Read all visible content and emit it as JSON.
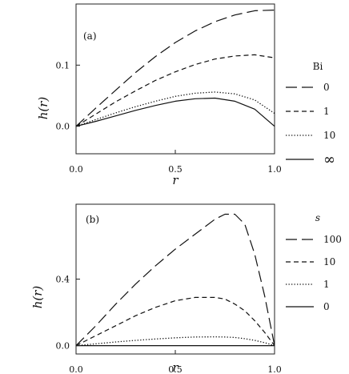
{
  "chart_data": [
    {
      "type": "line",
      "panel_label": "(a)",
      "xlabel": "r",
      "ylabel": "h(r)",
      "xlim": [
        0.0,
        1.0
      ],
      "ylim": [
        -0.045,
        0.2
      ],
      "x_ticks": [
        0.0,
        0.5,
        1.0
      ],
      "x_tick_labels": [
        "0.0",
        "0.5",
        "1.0"
      ],
      "y_ticks": [
        0.0,
        0.1
      ],
      "y_tick_labels": [
        "0.0",
        "0.1"
      ],
      "grid": false,
      "legend_placement": "right",
      "legend_title": "Bi",
      "x": [
        0.0,
        0.1,
        0.2,
        0.3,
        0.4,
        0.5,
        0.6,
        0.7,
        0.8,
        0.9,
        1.0
      ],
      "series": [
        {
          "name": "0",
          "dash": "long-dash",
          "values": [
            0.0,
            0.03,
            0.059,
            0.088,
            0.114,
            0.137,
            0.156,
            0.171,
            0.182,
            0.189,
            0.19
          ]
        },
        {
          "name": "1",
          "dash": "short-dash",
          "values": [
            0.0,
            0.02,
            0.04,
            0.058,
            0.075,
            0.089,
            0.101,
            0.11,
            0.115,
            0.117,
            0.112
          ]
        },
        {
          "name": "10",
          "dash": "dotted",
          "values": [
            0.0,
            0.011,
            0.022,
            0.032,
            0.041,
            0.049,
            0.054,
            0.056,
            0.053,
            0.043,
            0.021
          ]
        },
        {
          "name": "∞",
          "dash": "solid",
          "values": [
            0.0,
            0.008,
            0.017,
            0.026,
            0.034,
            0.041,
            0.045,
            0.046,
            0.041,
            0.028,
            0.0
          ]
        }
      ]
    },
    {
      "type": "line",
      "panel_label": "(b)",
      "xlabel": "r",
      "ylabel": "h(r)",
      "xlim": [
        0.0,
        1.0
      ],
      "ylim": [
        -0.05,
        0.85
      ],
      "x_ticks": [
        0.0,
        0.5,
        1.0
      ],
      "x_tick_labels": [
        "0.0",
        "0.5",
        "1.0"
      ],
      "y_ticks": [
        0.0,
        0.4
      ],
      "y_tick_labels": [
        "0.0",
        "0.4"
      ],
      "grid": false,
      "legend_placement": "right",
      "legend_title": "s",
      "x": [
        0.0,
        0.1,
        0.2,
        0.3,
        0.4,
        0.5,
        0.6,
        0.7,
        0.75,
        0.8,
        0.85,
        0.9,
        0.95,
        1.0
      ],
      "series": [
        {
          "name": "100",
          "dash": "long-dash",
          "values": [
            0.0,
            0.12,
            0.25,
            0.37,
            0.48,
            0.58,
            0.67,
            0.76,
            0.79,
            0.79,
            0.73,
            0.55,
            0.3,
            0.0
          ]
        },
        {
          "name": "10",
          "dash": "short-dash",
          "values": [
            0.0,
            0.06,
            0.12,
            0.18,
            0.23,
            0.27,
            0.29,
            0.29,
            0.28,
            0.25,
            0.21,
            0.15,
            0.08,
            0.0
          ]
        },
        {
          "name": "1",
          "dash": "dotted",
          "values": [
            0.0,
            0.011,
            0.022,
            0.032,
            0.04,
            0.047,
            0.052,
            0.053,
            0.052,
            0.049,
            0.042,
            0.032,
            0.018,
            0.0
          ]
        },
        {
          "name": "0",
          "dash": "solid",
          "values": [
            0.0,
            0.0,
            0.0,
            0.0,
            0.0,
            0.0,
            0.0,
            0.0,
            0.0,
            0.0,
            0.0,
            0.0,
            0.0,
            0.0
          ]
        }
      ]
    }
  ]
}
